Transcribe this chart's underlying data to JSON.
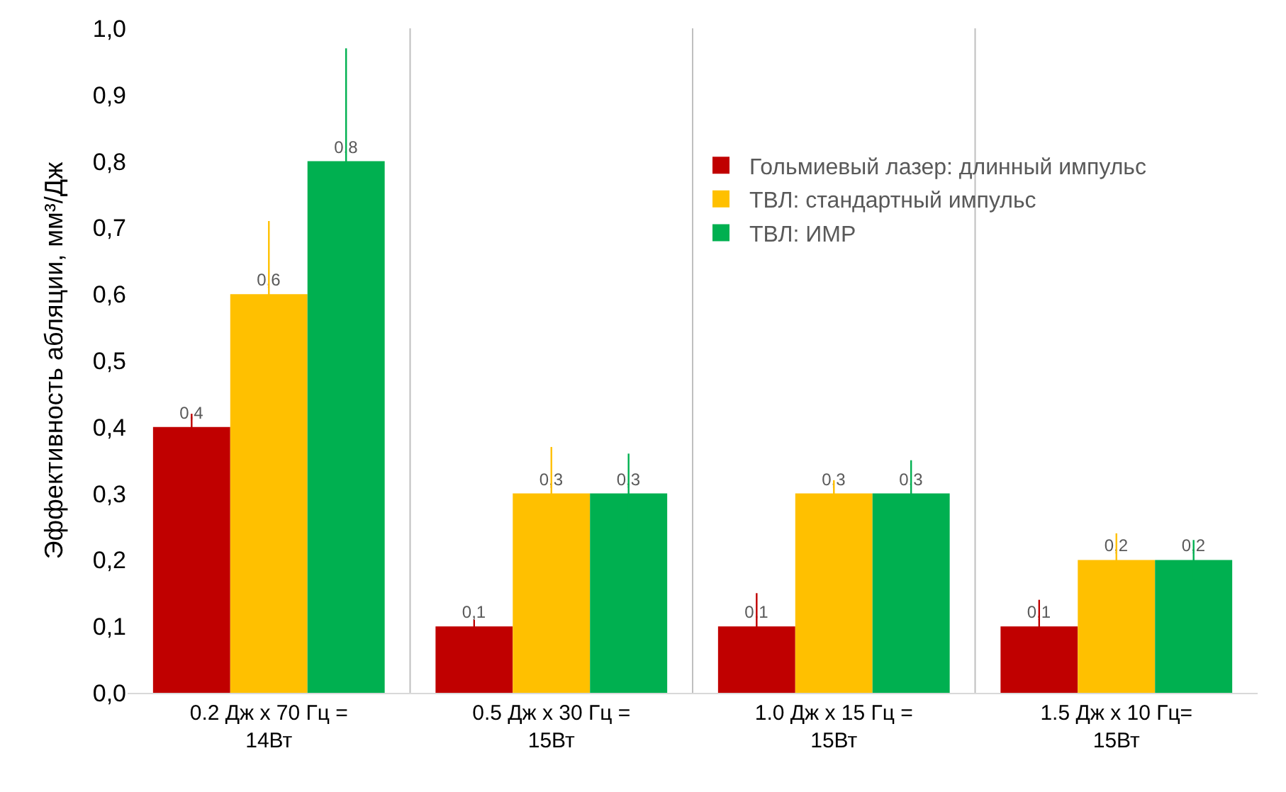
{
  "chart_data": {
    "type": "bar",
    "ylabel": "Эффективность абляции, мм³/Дж",
    "categories": [
      "0.2 Дж x 70 Гц = 14Вт",
      "0.5 Дж x 30 Гц = 15Вт",
      "1.0 Дж x 15 Гц = 15Вт",
      "1.5 Дж x 10 Гц= 15Вт"
    ],
    "series": [
      {
        "name": "Гольмиевый лазер: длинный импульс",
        "color": "#c00000",
        "values": [
          0.4,
          0.1,
          0.1,
          0.1
        ],
        "value_labels": [
          "0,4",
          "0,1",
          "0,1",
          "0,1"
        ],
        "errors": [
          0.02,
          0.01,
          0.05,
          0.04
        ]
      },
      {
        "name": "ТВЛ: стандартный импульс",
        "color": "#ffc000",
        "values": [
          0.6,
          0.3,
          0.3,
          0.2
        ],
        "value_labels": [
          "0,6",
          "0,3",
          "0,3",
          "0,2"
        ],
        "errors": [
          0.11,
          0.07,
          0.02,
          0.04
        ]
      },
      {
        "name": "ТВЛ: ИМР",
        "color": "#00b050",
        "values": [
          0.8,
          0.3,
          0.3,
          0.2
        ],
        "value_labels": [
          "0,8",
          "0,3",
          "0,3",
          "0,2"
        ],
        "errors": [
          0.17,
          0.06,
          0.05,
          0.03
        ]
      }
    ],
    "ylim": [
      0,
      1
    ],
    "yticks": [
      {
        "value": 0,
        "label": "0,0"
      },
      {
        "value": 0.1,
        "label": "0,1"
      },
      {
        "value": 0.2,
        "label": "0,2"
      },
      {
        "value": 0.3,
        "label": "0,3"
      },
      {
        "value": 0.4,
        "label": "0,4"
      },
      {
        "value": 0.5,
        "label": "0,5"
      },
      {
        "value": 0.6,
        "label": "0,6"
      },
      {
        "value": 0.7,
        "label": "0,7"
      },
      {
        "value": 0.8,
        "label": "0,8"
      },
      {
        "value": 0.9,
        "label": "0,9"
      },
      {
        "value": 1,
        "label": "1,0"
      }
    ],
    "grid": "x",
    "legend": "top right"
  }
}
